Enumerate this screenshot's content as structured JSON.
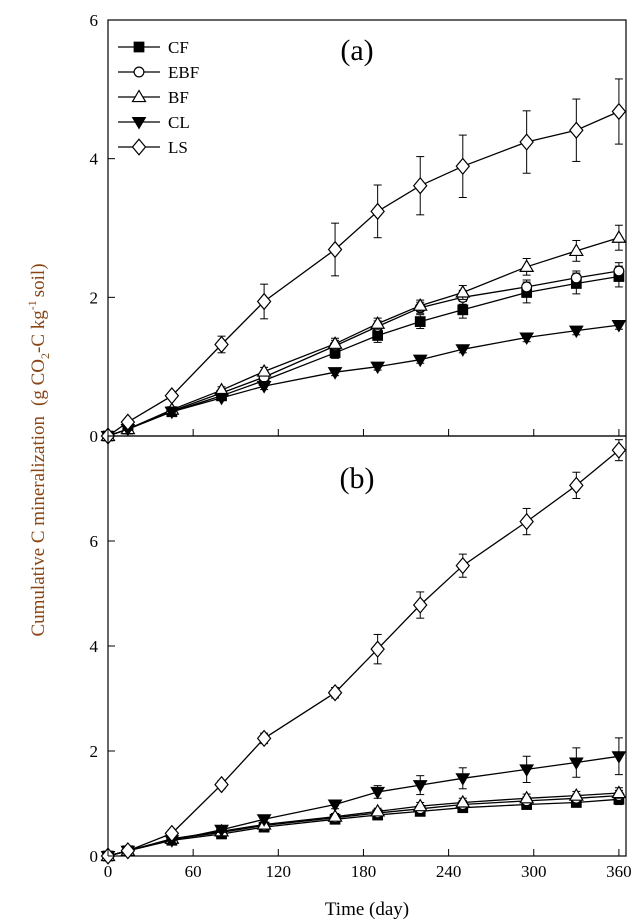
{
  "chart_data": [
    {
      "type": "line",
      "panel_label": "(a)",
      "ylim": [
        0,
        6
      ],
      "yticks": [
        "0",
        "2",
        "4",
        "6"
      ],
      "legend": {
        "placement": "top-left"
      },
      "series": [
        {
          "name": "CF",
          "marker": "square-filled",
          "x": [
            0,
            14,
            45,
            80,
            110,
            160,
            190,
            220,
            250,
            295,
            330,
            360
          ],
          "y": [
            0,
            0.1,
            0.35,
            0.58,
            0.8,
            1.2,
            1.45,
            1.65,
            1.82,
            2.07,
            2.2,
            2.3
          ],
          "err": [
            0,
            0.02,
            0.04,
            0.05,
            0.06,
            0.08,
            0.1,
            0.1,
            0.12,
            0.15,
            0.15,
            0.15
          ]
        },
        {
          "name": "EBF",
          "marker": "circle-open",
          "x": [
            0,
            14,
            45,
            80,
            110,
            160,
            190,
            220,
            250,
            295,
            330,
            360
          ],
          "y": [
            0,
            0.1,
            0.36,
            0.62,
            0.85,
            1.3,
            1.58,
            1.85,
            2.0,
            2.15,
            2.28,
            2.38
          ],
          "err": [
            0,
            0.02,
            0.04,
            0.05,
            0.06,
            0.08,
            0.08,
            0.08,
            0.1,
            0.1,
            0.1,
            0.12
          ]
        },
        {
          "name": "BF",
          "marker": "triangle-open",
          "x": [
            0,
            14,
            45,
            80,
            110,
            160,
            190,
            220,
            250,
            295,
            330,
            360
          ],
          "y": [
            0,
            0.1,
            0.38,
            0.66,
            0.93,
            1.33,
            1.62,
            1.88,
            2.07,
            2.44,
            2.67,
            2.86
          ],
          "err": [
            0,
            0.02,
            0.04,
            0.05,
            0.06,
            0.08,
            0.08,
            0.08,
            0.1,
            0.12,
            0.15,
            0.18
          ]
        },
        {
          "name": "CL",
          "marker": "triangle-down-filled",
          "x": [
            0,
            14,
            45,
            80,
            110,
            160,
            190,
            220,
            250,
            295,
            330,
            360
          ],
          "y": [
            0,
            0.1,
            0.35,
            0.55,
            0.72,
            0.92,
            1.0,
            1.1,
            1.25,
            1.42,
            1.52,
            1.6
          ],
          "err": [
            0,
            0.02,
            0.03,
            0.04,
            0.05,
            0.05,
            0.05,
            0.05,
            0.05,
            0.06,
            0.06,
            0.06
          ]
        },
        {
          "name": "LS",
          "marker": "diamond-open",
          "x": [
            0,
            14,
            45,
            80,
            110,
            160,
            190,
            220,
            250,
            295,
            330,
            360
          ],
          "y": [
            0,
            0.2,
            0.58,
            1.32,
            1.94,
            2.69,
            3.24,
            3.61,
            3.89,
            4.24,
            4.41,
            4.68
          ],
          "err": [
            0,
            0.04,
            0.05,
            0.12,
            0.25,
            0.38,
            0.38,
            0.42,
            0.45,
            0.45,
            0.45,
            0.47
          ]
        }
      ]
    },
    {
      "type": "line",
      "panel_label": "(b)",
      "ylim": [
        0,
        8
      ],
      "yticks": [
        "0",
        "2",
        "4",
        "6"
      ],
      "xlim": [
        0,
        365
      ],
      "xticks": [
        "0",
        "60",
        "120",
        "180",
        "240",
        "300",
        "360"
      ],
      "xlabel": "Time (day)",
      "series": [
        {
          "name": "CF",
          "marker": "square-filled",
          "x": [
            0,
            14,
            45,
            80,
            110,
            160,
            190,
            220,
            250,
            295,
            330,
            360
          ],
          "y": [
            0,
            0.1,
            0.3,
            0.42,
            0.55,
            0.7,
            0.78,
            0.85,
            0.92,
            0.98,
            1.02,
            1.08
          ],
          "err": [
            0,
            0.02,
            0.04,
            0.05,
            0.05,
            0.06,
            0.06,
            0.07,
            0.08,
            0.08,
            0.08,
            0.1
          ]
        },
        {
          "name": "EBF",
          "marker": "circle-open",
          "x": [
            0,
            14,
            45,
            80,
            110,
            160,
            190,
            220,
            250,
            295,
            330,
            360
          ],
          "y": [
            0,
            0.1,
            0.32,
            0.45,
            0.58,
            0.73,
            0.82,
            0.9,
            0.98,
            1.05,
            1.1,
            1.15
          ],
          "err": [
            0,
            0.02,
            0.04,
            0.05,
            0.05,
            0.06,
            0.06,
            0.07,
            0.08,
            0.08,
            0.08,
            0.1
          ]
        },
        {
          "name": "BF",
          "marker": "triangle-open",
          "x": [
            0,
            14,
            45,
            80,
            110,
            160,
            190,
            220,
            250,
            295,
            330,
            360
          ],
          "y": [
            0,
            0.1,
            0.33,
            0.47,
            0.6,
            0.75,
            0.85,
            0.95,
            1.02,
            1.1,
            1.15,
            1.2
          ],
          "err": [
            0,
            0.02,
            0.04,
            0.05,
            0.05,
            0.06,
            0.06,
            0.07,
            0.08,
            0.08,
            0.08,
            0.1
          ]
        },
        {
          "name": "CL",
          "marker": "triangle-down-filled",
          "x": [
            0,
            14,
            45,
            80,
            110,
            160,
            190,
            220,
            250,
            295,
            330,
            360
          ],
          "y": [
            0,
            0.1,
            0.3,
            0.5,
            0.7,
            0.98,
            1.22,
            1.35,
            1.48,
            1.65,
            1.78,
            1.9
          ],
          "err": [
            0,
            0.02,
            0.04,
            0.05,
            0.06,
            0.08,
            0.12,
            0.18,
            0.2,
            0.25,
            0.28,
            0.35
          ]
        },
        {
          "name": "LS",
          "marker": "diamond-open",
          "x": [
            0,
            14,
            45,
            80,
            110,
            160,
            190,
            220,
            250,
            295,
            330,
            360
          ],
          "y": [
            0,
            0.1,
            0.43,
            1.36,
            2.24,
            3.11,
            3.94,
            4.78,
            5.53,
            6.37,
            7.06,
            7.73
          ],
          "err": [
            0,
            0.02,
            0.05,
            0.08,
            0.1,
            0.1,
            0.28,
            0.25,
            0.22,
            0.25,
            0.25,
            0.2
          ]
        }
      ]
    }
  ],
  "ylabel": {
    "main": "Cumulative C mineralization",
    "unit_open": "(g CO",
    "unit_sub": "2",
    "unit_mid": "-C kg",
    "unit_sup": "-1",
    "unit_close": "soil)"
  },
  "colors": {
    "ylabel": "#8b4513",
    "ink": "#000000"
  }
}
